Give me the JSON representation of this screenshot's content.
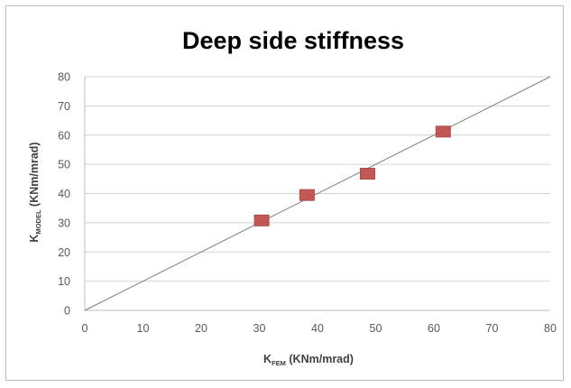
{
  "chart_data": {
    "type": "scatter",
    "title": "Deep side stiffness",
    "xlabel": {
      "main": "K",
      "sub": "FEM",
      "rest": " (KNm/mrad)"
    },
    "ylabel": {
      "main": "K",
      "sub": "MODEL",
      "rest": " (KNm/mrad)"
    },
    "xlim": [
      0,
      80
    ],
    "ylim": [
      0,
      80
    ],
    "xticks": [
      "0",
      "10",
      "20",
      "30",
      "40",
      "50",
      "60",
      "70",
      "80"
    ],
    "yticks": [
      "0",
      "10",
      "20",
      "30",
      "40",
      "50",
      "60",
      "70",
      "80"
    ],
    "grid": {
      "horizontal": true,
      "vertical": false
    },
    "reference_line": {
      "x": [
        0,
        80
      ],
      "y": [
        0,
        80
      ]
    },
    "series": [
      {
        "x": [
          30.4,
          38.2,
          48.6,
          61.6
        ],
        "y": [
          30.8,
          39.5,
          46.8,
          61.2
        ],
        "color": "#c0504d",
        "marker": "square"
      }
    ]
  }
}
